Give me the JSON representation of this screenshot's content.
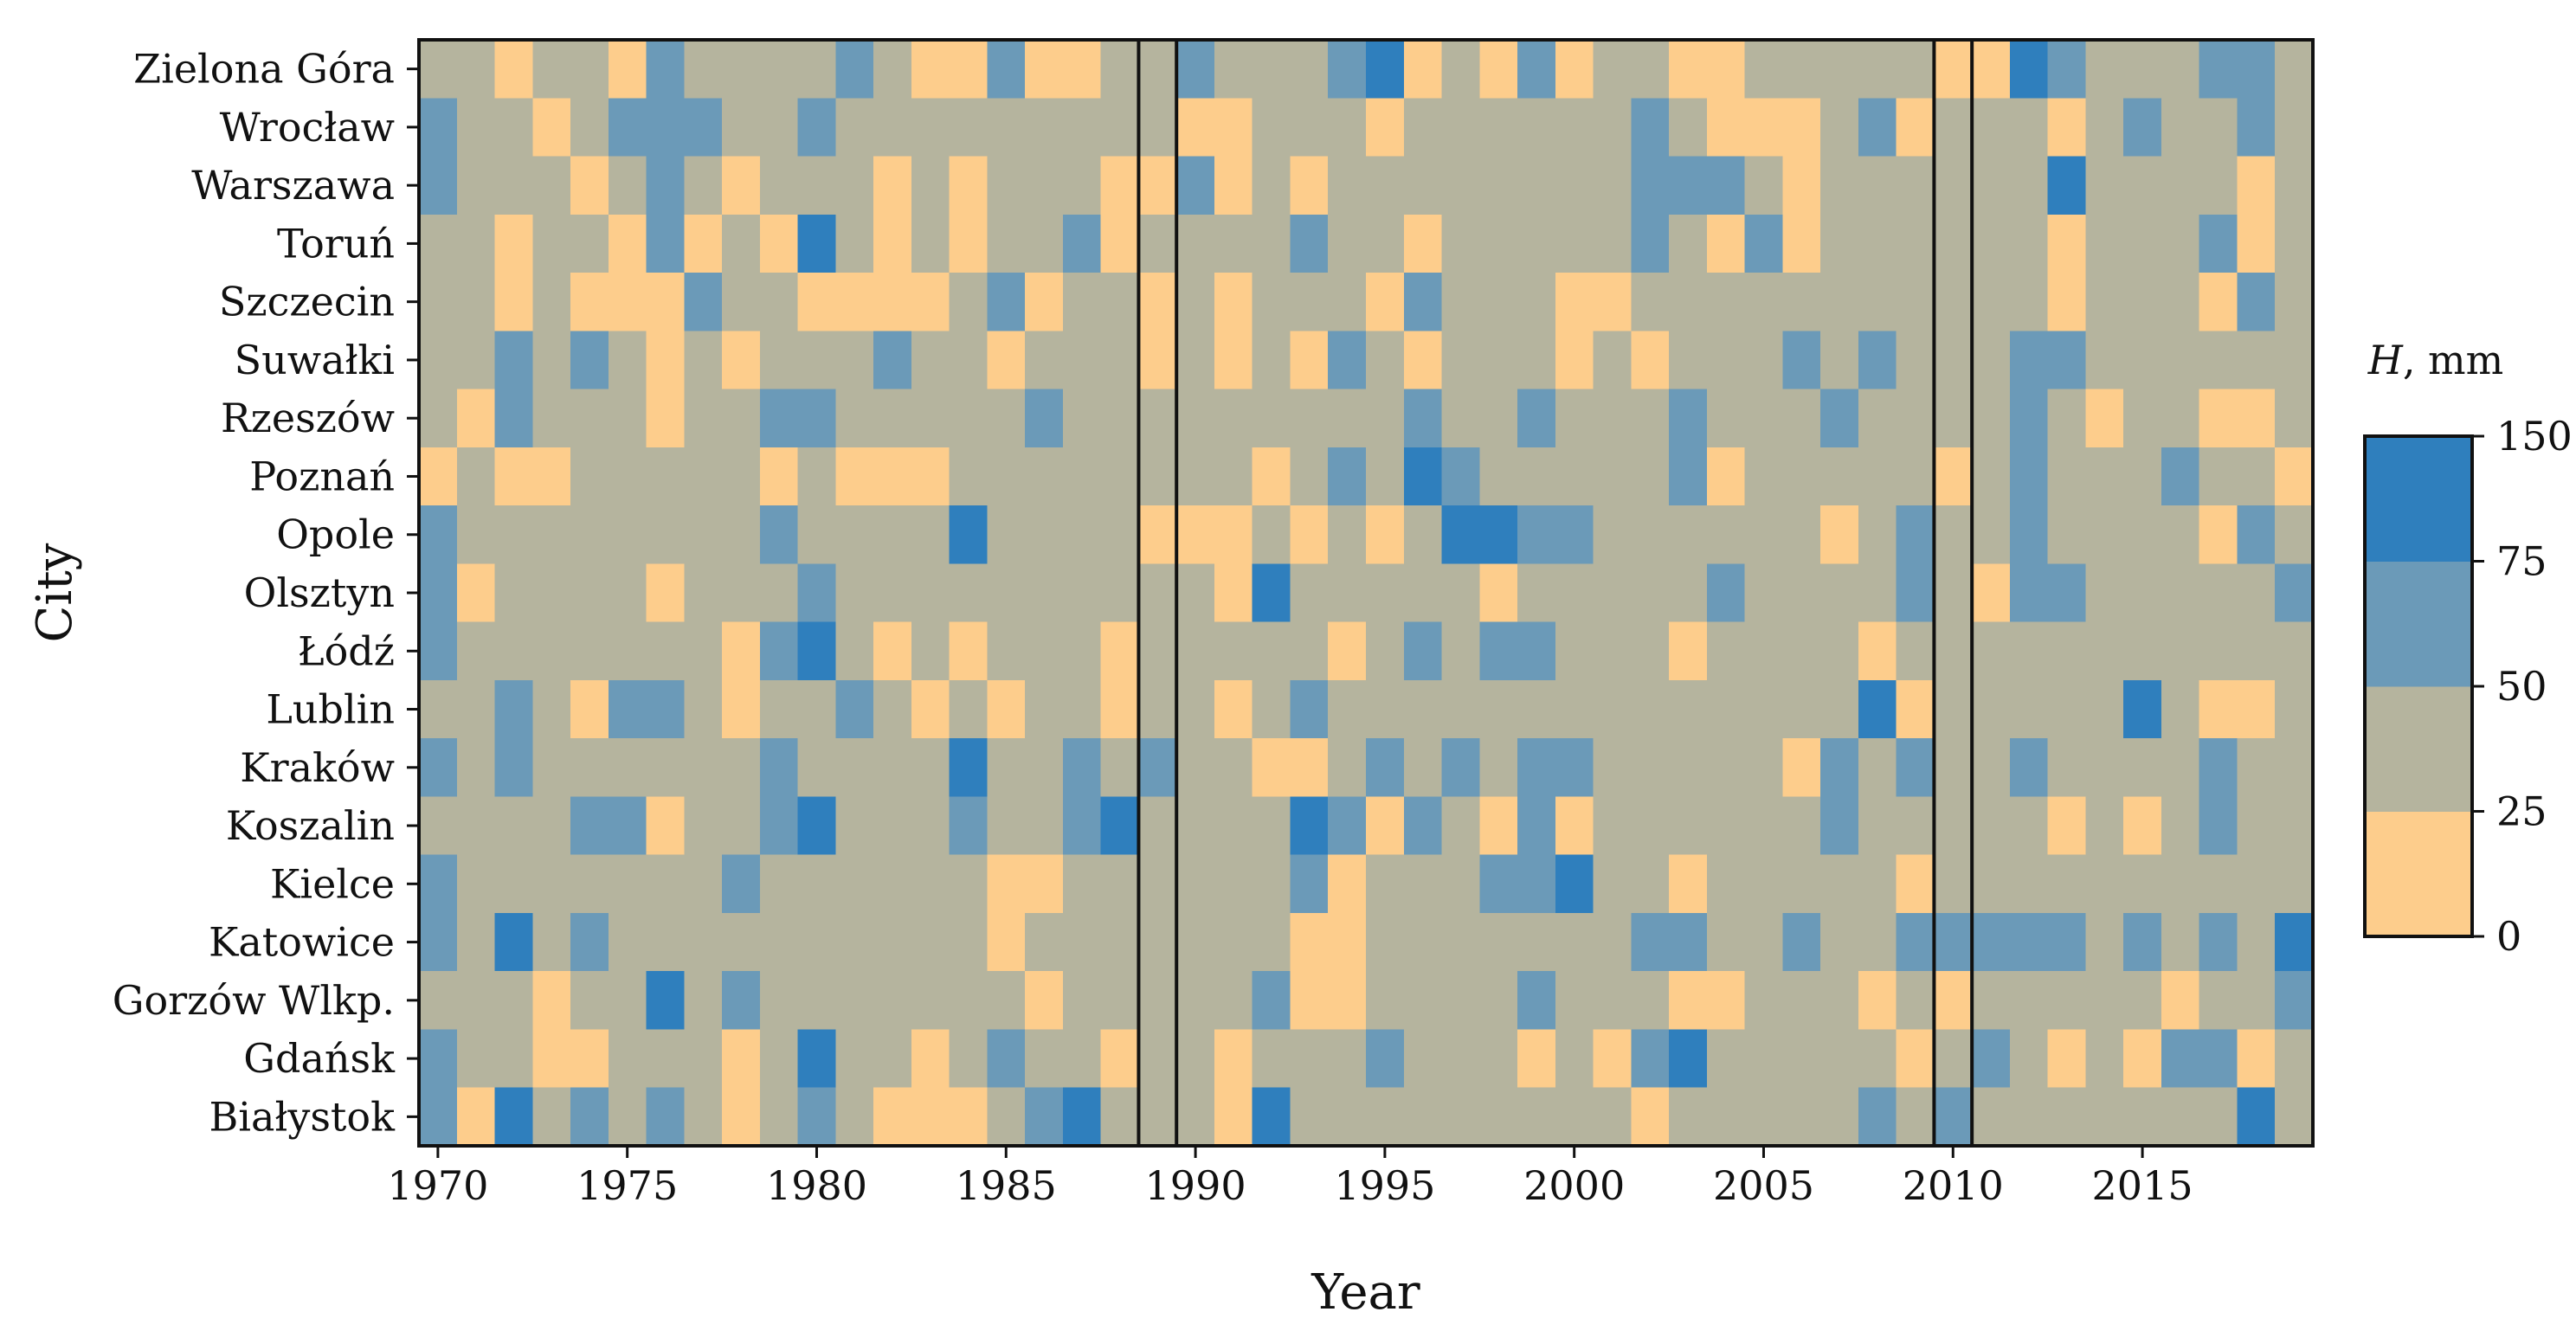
{
  "chart_data": {
    "type": "heatmap",
    "xlabel": "Year",
    "ylabel": "City",
    "years": [
      1970,
      1971,
      1972,
      1973,
      1974,
      1975,
      1976,
      1977,
      1978,
      1979,
      1980,
      1981,
      1982,
      1983,
      1984,
      1985,
      1986,
      1987,
      1988,
      1989,
      1990,
      1991,
      1992,
      1993,
      1994,
      1995,
      1996,
      1997,
      1998,
      1999,
      2000,
      2001,
      2002,
      2003,
      2004,
      2005,
      2006,
      2007,
      2008,
      2009,
      2010,
      2011,
      2012,
      2013,
      2014,
      2015,
      2016,
      2017,
      2018,
      2019
    ],
    "x_ticks": [
      "1970",
      "1975",
      "1980",
      "1985",
      "1990",
      "1995",
      "2000",
      "2005",
      "2010",
      "2015"
    ],
    "cities": [
      "Zielona Góra",
      "Wrocław",
      "Warszawa",
      "Toruń",
      "Szczecin",
      "Suwałki",
      "Rzeszów",
      "Poznań",
      "Opole",
      "Olsztyn",
      "Łódź",
      "Lublin",
      "Kraków",
      "Koszalin",
      "Kielce",
      "Katowice",
      "Gorzów Wlkp.",
      "Gdańsk",
      "Białystok"
    ],
    "value_classes": {
      "legend": "0 = 0–25 mm, 1 = 25–50 mm, 2 = 50–75 mm, 3 = 75–150 mm",
      "rows": {
        "Zielona Góra": "11011021111210020011211123010201100111110032111221",
        "Wrocław": "21101222112111111111001110111111210001201110121121",
        "Warszawa": "21110121011101011100201011111111222101111113111101",
        "Toruń": "11011020103101011201111211011111210201111110111201",
        "Szczecin": "11010002110000120110101110211100111111111110111021",
        "Suwałki": "11212101011121101110101021011101011121211122111111",
        "Rzeszów": "10211101122111112111111111211211121112111121011001",
        "Poznań": "01001111101000111111110121321111120111110121112110",
        "Opole": "21111111121111311110001010133221111110121121111021",
        "Olsztyn": "20111101112111111111103111110111112111121022111112",
        "Łódź": "21111111023101011101111101212211101111011111111111",
        "Lublin": "11210221011210101101101211111111111111301111131001",
        "Kraków": "21211111121111311212110012121221111102121121111211",
        "Koszalin": "11112201123111211231111320210201111112111110101211",
        "Kielce": "21111111211111100111111201112231101111101111111111",
        "Katowice": "21312111111111101111111001111111221121122222121213",
        "Gorzów Wlkp.": "11101131211111110111112001111211100111010111110112",
        "Gdańsk": "21100111013110121101101112111010231111101210102201",
        "Białystok": "20312121012100012311103111111111011111212111111131"
      }
    },
    "highlighted_years": [
      1989,
      2010
    ],
    "colorbar": {
      "title_var": "H",
      "title_unit": ", mm",
      "ticks": [
        "0",
        "25",
        "50",
        "75",
        "150"
      ],
      "colors": [
        "#fdcd8c",
        "#b5b49e",
        "#6b9ab8",
        "#2f7fbd"
      ]
    }
  }
}
